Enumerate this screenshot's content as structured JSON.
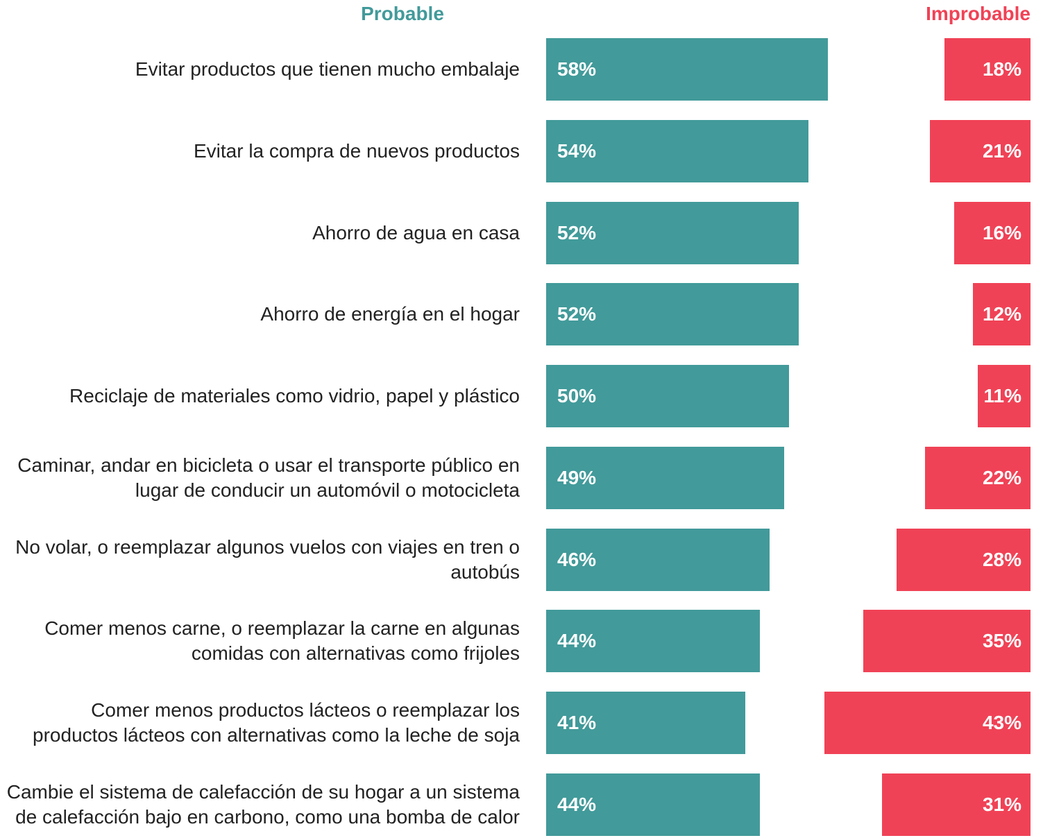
{
  "chart_data": {
    "type": "bar",
    "categories": [
      "Evitar productos que tienen mucho embalaje",
      "Evitar la compra de nuevos productos",
      "Ahorro de agua en casa",
      "Ahorro de energía en el hogar",
      "Reciclaje de materiales como vidrio, papel y plástico",
      "Caminar, andar en bicicleta o usar el transporte público en lugar de conducir un automóvil o motocicleta",
      "No volar, o reemplazar algunos vuelos con viajes en tren o autobús",
      "Comer menos carne, o reemplazar la carne en algunas comidas con alternativas como frijoles",
      "Comer menos productos lácteos o reemplazar los productos lácteos con alternativas como la leche de soja",
      "Cambie el sistema de calefacción de su hogar a un sistema de calefacción bajo en carbono, como una bomba de calor"
    ],
    "series": [
      {
        "name": "Probable",
        "color": "#429a9a",
        "values": [
          58,
          54,
          52,
          52,
          50,
          49,
          46,
          44,
          41,
          44
        ],
        "value_labels": [
          "58%",
          "54%",
          "52%",
          "52%",
          "50%",
          "49%",
          "46%",
          "44%",
          "41%",
          "44%"
        ]
      },
      {
        "name": "Improbable",
        "color": "#f04256",
        "values": [
          18,
          21,
          16,
          12,
          11,
          22,
          28,
          35,
          43,
          31
        ],
        "value_labels": [
          "18%",
          "21%",
          "16%",
          "12%",
          "11%",
          "22%",
          "28%",
          "35%",
          "43%",
          "31%"
        ]
      }
    ]
  }
}
